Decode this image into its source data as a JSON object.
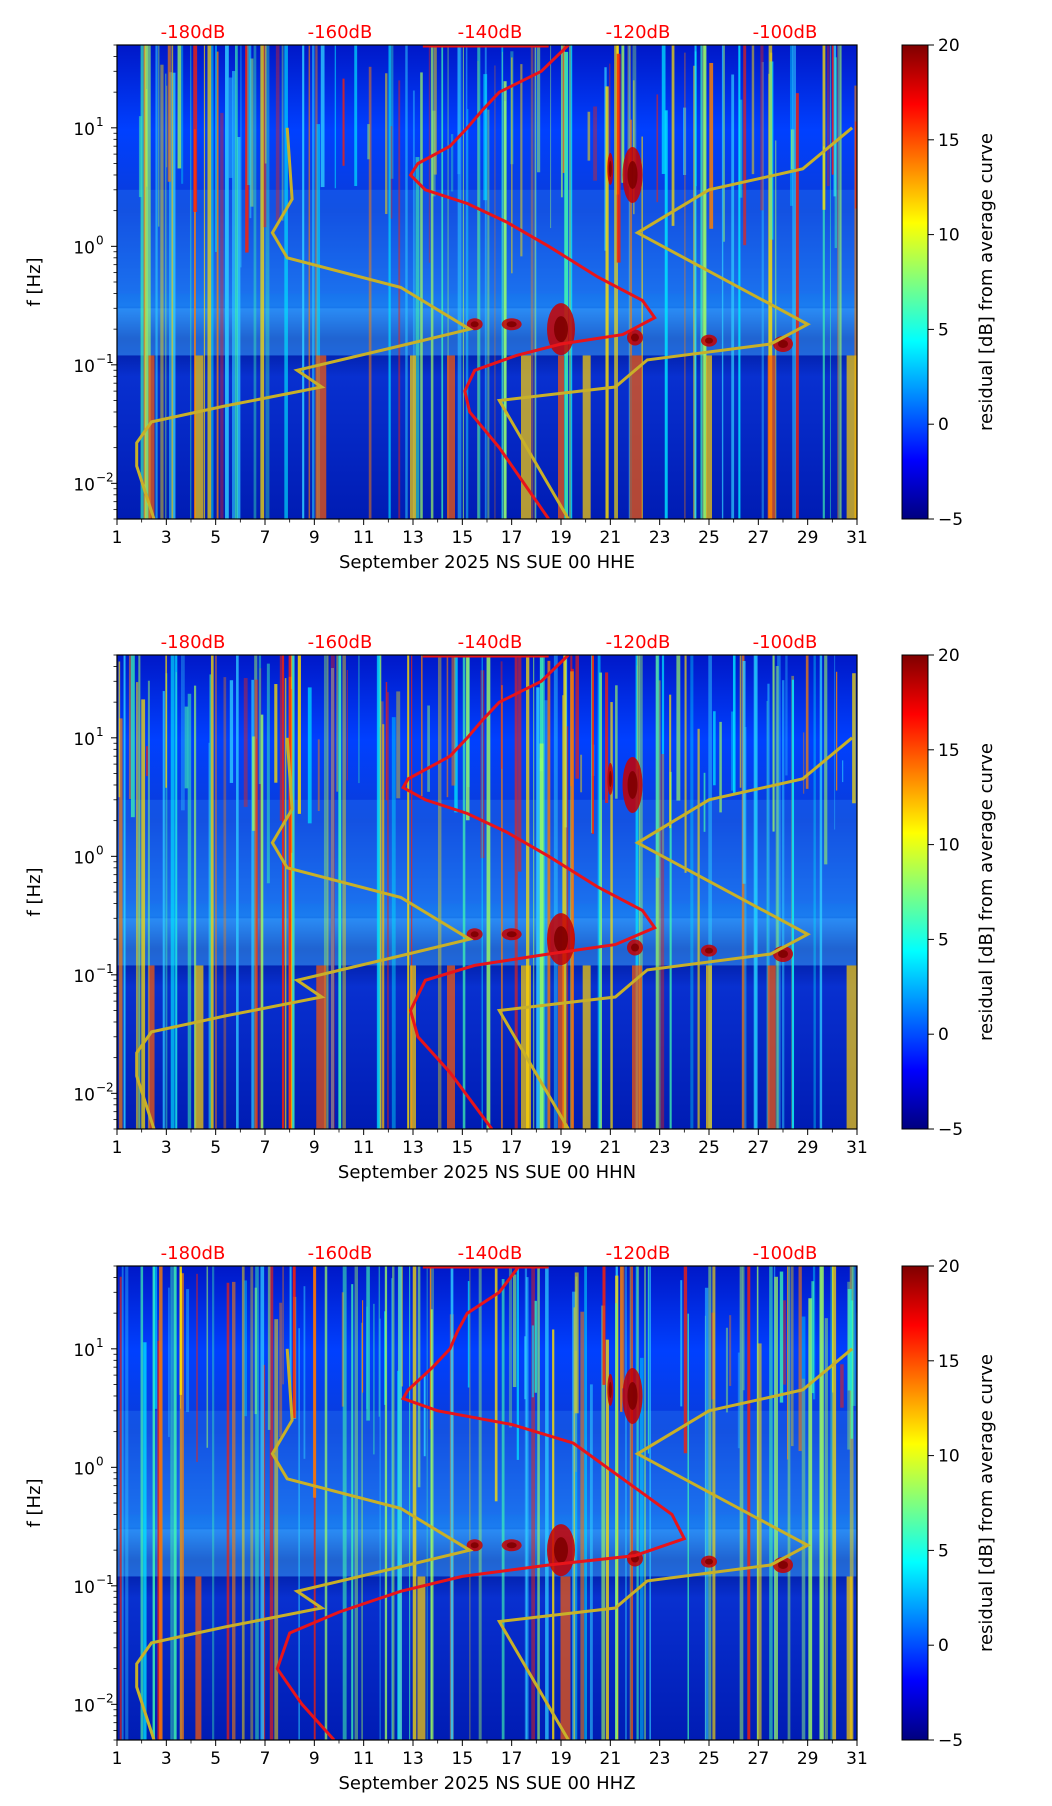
{
  "colors": {
    "nlnm_curve": "#e8141a",
    "nhnm_curve": "#c8b028",
    "db_label": "#ff0000"
  },
  "colorbar": {
    "label": "residual [dB] from average curve",
    "ticks": [
      "20",
      "15",
      "10",
      "5",
      "0",
      "−5"
    ],
    "range": [
      -5,
      20
    ]
  },
  "chart_data": [
    {
      "type": "heatmap",
      "xlabel": "September 2025 NS SUE 00 HHE",
      "ylabel": "f [Hz]",
      "x_ticks": [
        "1",
        "3",
        "5",
        "7",
        "9",
        "11",
        "13",
        "15",
        "17",
        "19",
        "21",
        "23",
        "25",
        "27",
        "29",
        "31"
      ],
      "y_ticks": [
        "10",
        "10",
        "10",
        "10"
      ],
      "y_tick_exponents": [
        "1",
        "0",
        "−1",
        "−2"
      ],
      "y_range_hz": [
        0.005,
        50
      ],
      "x_range_days": [
        1,
        31
      ],
      "db_ticks": [
        "-180dB",
        "-160dB",
        "-140dB",
        "-120dB",
        "-100dB"
      ],
      "red_curve": [
        [
          19.3,
          50
        ],
        [
          18.2,
          30
        ],
        [
          16.5,
          20
        ],
        [
          15.8,
          14
        ],
        [
          15.2,
          10
        ],
        [
          14.5,
          7
        ],
        [
          13.2,
          5
        ],
        [
          12.9,
          4
        ],
        [
          13.5,
          3
        ],
        [
          15.2,
          2.3
        ],
        [
          16.8,
          1.6
        ],
        [
          18.5,
          1.0
        ],
        [
          20.5,
          0.55
        ],
        [
          22.3,
          0.35
        ],
        [
          22.8,
          0.25
        ],
        [
          21.5,
          0.18
        ],
        [
          19,
          0.15
        ],
        [
          17.2,
          0.12
        ],
        [
          15.5,
          0.09
        ],
        [
          15.1,
          0.06
        ],
        [
          15.3,
          0.04
        ],
        [
          16.5,
          0.02
        ],
        [
          18.5,
          0.005
        ]
      ],
      "yellow_curve": [
        [
          7.9,
          10
        ],
        [
          8.1,
          2.5
        ],
        [
          7.3,
          1.3
        ],
        [
          7.9,
          0.8
        ],
        [
          12.5,
          0.45
        ],
        [
          15.3,
          0.2
        ],
        [
          12.8,
          0.15
        ],
        [
          8.3,
          0.09
        ],
        [
          9.3,
          0.065
        ],
        [
          5.4,
          0.045
        ],
        [
          2.4,
          0.033
        ],
        [
          1.8,
          0.022
        ],
        [
          1.8,
          0.014
        ],
        [
          2.5,
          0.005
        ]
      ],
      "yellow_curve_right": [
        [
          19.3,
          0.005
        ],
        [
          16.5,
          0.05
        ],
        [
          21.2,
          0.065
        ],
        [
          22.5,
          0.11
        ],
        [
          27.5,
          0.15
        ],
        [
          29,
          0.22
        ],
        [
          22.1,
          1.3
        ],
        [
          25,
          3
        ],
        [
          28.8,
          4.5
        ],
        [
          30.8,
          10
        ]
      ]
    },
    {
      "type": "heatmap",
      "xlabel": "September 2025 NS SUE 00 HHN",
      "ylabel": "f [Hz]",
      "x_ticks": [
        "1",
        "3",
        "5",
        "7",
        "9",
        "11",
        "13",
        "15",
        "17",
        "19",
        "21",
        "23",
        "25",
        "27",
        "29",
        "31"
      ],
      "y_ticks": [
        "10",
        "10",
        "10",
        "10"
      ],
      "y_tick_exponents": [
        "1",
        "0",
        "−1",
        "−2"
      ],
      "y_range_hz": [
        0.005,
        50
      ],
      "x_range_days": [
        1,
        31
      ],
      "db_ticks": [
        "-180dB",
        "-160dB",
        "-140dB",
        "-120dB",
        "-100dB"
      ],
      "red_curve": [
        [
          19.3,
          50
        ],
        [
          18.2,
          30
        ],
        [
          16.5,
          20
        ],
        [
          15.8,
          14
        ],
        [
          15.2,
          10
        ],
        [
          14.5,
          7
        ],
        [
          12.8,
          4.5
        ],
        [
          12.6,
          3.8
        ],
        [
          13.5,
          3
        ],
        [
          15.2,
          2.3
        ],
        [
          16.8,
          1.6
        ],
        [
          18.5,
          1.0
        ],
        [
          20.5,
          0.55
        ],
        [
          22.3,
          0.35
        ],
        [
          22.8,
          0.25
        ],
        [
          21.2,
          0.18
        ],
        [
          18.5,
          0.15
        ],
        [
          15.5,
          0.12
        ],
        [
          13.5,
          0.09
        ],
        [
          12.9,
          0.05
        ],
        [
          13.2,
          0.03
        ],
        [
          14.5,
          0.015
        ],
        [
          16.2,
          0.005
        ]
      ],
      "yellow_curve": [
        [
          7.9,
          10
        ],
        [
          8.1,
          2.5
        ],
        [
          7.3,
          1.3
        ],
        [
          7.9,
          0.8
        ],
        [
          12.5,
          0.45
        ],
        [
          15.3,
          0.2
        ],
        [
          12.8,
          0.15
        ],
        [
          8.3,
          0.09
        ],
        [
          9.3,
          0.065
        ],
        [
          5.4,
          0.045
        ],
        [
          2.4,
          0.033
        ],
        [
          1.8,
          0.022
        ],
        [
          1.8,
          0.014
        ],
        [
          2.5,
          0.005
        ]
      ],
      "yellow_curve_right": [
        [
          19.3,
          0.005
        ],
        [
          16.5,
          0.05
        ],
        [
          21.2,
          0.065
        ],
        [
          22.5,
          0.11
        ],
        [
          27.5,
          0.15
        ],
        [
          29,
          0.22
        ],
        [
          22.1,
          1.3
        ],
        [
          25,
          3
        ],
        [
          28.8,
          4.5
        ],
        [
          30.8,
          10
        ]
      ]
    },
    {
      "type": "heatmap",
      "xlabel": "September 2025 NS SUE 00 HHZ",
      "ylabel": "f [Hz]",
      "x_ticks": [
        "1",
        "3",
        "5",
        "7",
        "9",
        "11",
        "13",
        "15",
        "17",
        "19",
        "21",
        "23",
        "25",
        "27",
        "29",
        "31"
      ],
      "y_ticks": [
        "10",
        "10",
        "10",
        "10"
      ],
      "y_tick_exponents": [
        "1",
        "0",
        "−1",
        "−2"
      ],
      "y_range_hz": [
        0.005,
        50
      ],
      "x_range_days": [
        1,
        31
      ],
      "db_ticks": [
        "-180dB",
        "-160dB",
        "-140dB",
        "-120dB",
        "-100dB"
      ],
      "red_curve": [
        [
          17.3,
          50
        ],
        [
          16.5,
          30
        ],
        [
          15.2,
          20
        ],
        [
          14.8,
          14
        ],
        [
          14.5,
          10
        ],
        [
          13.8,
          7
        ],
        [
          12.8,
          4.5
        ],
        [
          12.6,
          3.8
        ],
        [
          14,
          3
        ],
        [
          17,
          2.3
        ],
        [
          19.5,
          1.6
        ],
        [
          21.5,
          0.8
        ],
        [
          23.5,
          0.4
        ],
        [
          24,
          0.25
        ],
        [
          22,
          0.18
        ],
        [
          18.5,
          0.15
        ],
        [
          15,
          0.12
        ],
        [
          12.5,
          0.09
        ],
        [
          10,
          0.06
        ],
        [
          8,
          0.04
        ],
        [
          7.5,
          0.02
        ],
        [
          8.5,
          0.01
        ],
        [
          9.8,
          0.005
        ]
      ],
      "yellow_curve": [
        [
          7.9,
          10
        ],
        [
          8.1,
          2.5
        ],
        [
          7.3,
          1.3
        ],
        [
          7.9,
          0.8
        ],
        [
          12.5,
          0.45
        ],
        [
          15.3,
          0.2
        ],
        [
          12.8,
          0.15
        ],
        [
          8.3,
          0.09
        ],
        [
          9.3,
          0.065
        ],
        [
          5.4,
          0.045
        ],
        [
          2.4,
          0.033
        ],
        [
          1.8,
          0.022
        ],
        [
          1.8,
          0.014
        ],
        [
          2.5,
          0.005
        ]
      ],
      "yellow_curve_right": [
        [
          19.3,
          0.005
        ],
        [
          16.5,
          0.05
        ],
        [
          21.2,
          0.065
        ],
        [
          22.5,
          0.11
        ],
        [
          27.5,
          0.15
        ],
        [
          29,
          0.22
        ],
        [
          22.1,
          1.3
        ],
        [
          25,
          3
        ],
        [
          28.8,
          4.5
        ],
        [
          30.8,
          10
        ]
      ]
    }
  ]
}
